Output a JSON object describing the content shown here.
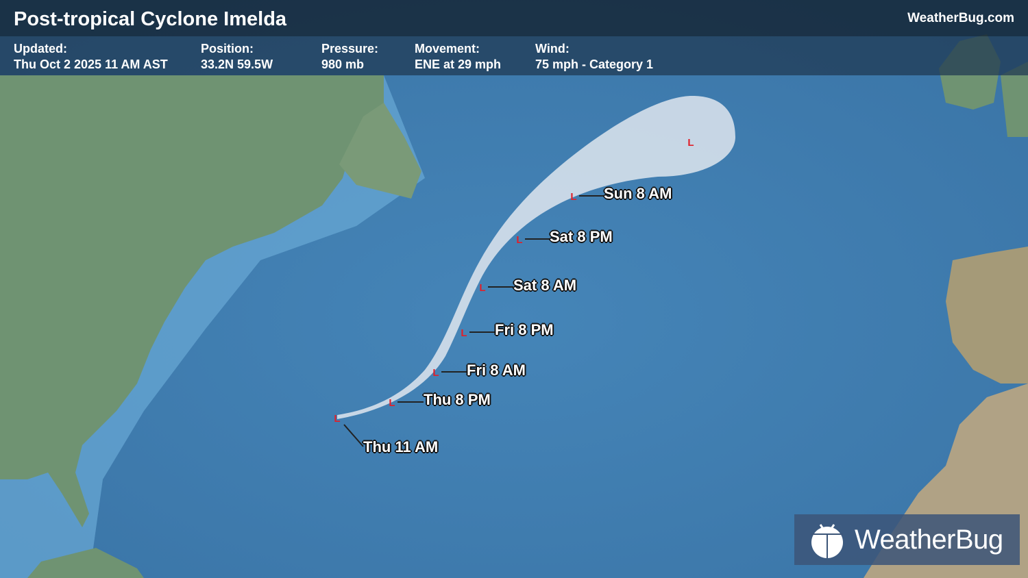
{
  "header": {
    "title": "Post-tropical Cyclone Imelda",
    "brand": "WeatherBug.com"
  },
  "info": [
    {
      "label": "Updated:",
      "value": "Thu Oct 2 2025 11 AM AST"
    },
    {
      "label": "Position:",
      "value": "33.2N  59.5W"
    },
    {
      "label": "Pressure:",
      "value": "980 mb"
    },
    {
      "label": "Movement:",
      "value": "ENE at 29 mph"
    },
    {
      "label": "Wind:",
      "value": "75 mph - Category 1"
    }
  ],
  "track": {
    "marker_symbol": "L",
    "marker_color": "#e0202a",
    "cone_color": "#dfe6ee",
    "points": [
      {
        "label": "Thu 11 AM"
      },
      {
        "label": "Thu 8 PM"
      },
      {
        "label": "Fri 8 AM"
      },
      {
        "label": "Fri 8 PM"
      },
      {
        "label": "Sat 8 AM"
      },
      {
        "label": "Sat 8 PM"
      },
      {
        "label": "Sun 8 AM"
      },
      {
        "label": ""
      }
    ]
  },
  "logo": {
    "text": "WeatherBug",
    "icon": "weatherbug-bug-icon"
  }
}
